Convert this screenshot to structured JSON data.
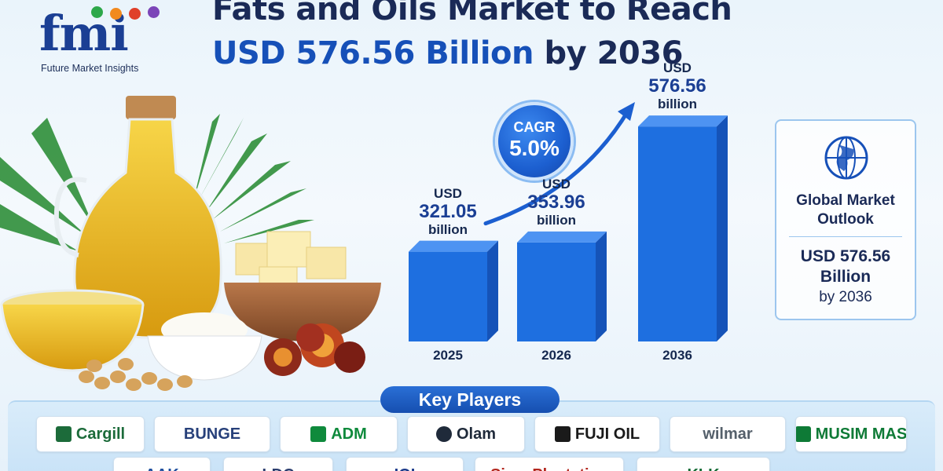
{
  "logo": {
    "letters": "fmi",
    "tagline": "Future Market Insights"
  },
  "headline": {
    "line1": "Fats and Oils Market to Reach",
    "line2_accent": "USD 576.56 Billion",
    "line2_rest": "by 2036"
  },
  "cagr": {
    "label": "CAGR",
    "value": "5.0%"
  },
  "chart_data": {
    "type": "bar",
    "categories": [
      "2025",
      "2026",
      "2036"
    ],
    "values": [
      321.05,
      353.96,
      576.56
    ],
    "value_labels": [
      {
        "currency": "USD",
        "number": "321.05",
        "unit": "billion"
      },
      {
        "currency": "USD",
        "number": "353.96",
        "unit": "billion"
      },
      {
        "currency": "USD",
        "number": "576.56",
        "unit": "billion"
      }
    ],
    "title": "",
    "xlabel": "",
    "ylabel": "",
    "ylim": [
      0,
      600
    ],
    "grid": false,
    "bar_color": "#1e6fe0",
    "trend_arrow": true
  },
  "outlook": {
    "title_line1": "Global Market",
    "title_line2": "Outlook",
    "value_line1": "USD 576.56",
    "value_line2": "Billion",
    "value_line3": "by 2036"
  },
  "players": {
    "title": "Key Players",
    "row1": [
      {
        "name": "Cargill",
        "color": "#1c6b3a",
        "icon": "leaf-icon"
      },
      {
        "name": "BUNGE",
        "color": "#27407a",
        "icon": ""
      },
      {
        "name": "ADM",
        "color": "#0f8a3c",
        "icon": "adm-mark-icon"
      },
      {
        "name": "Olam",
        "color": "#1f2a3a",
        "icon": "olam-flower-icon"
      },
      {
        "name": "FUJI OIL",
        "color": "#1a1a1a",
        "icon": "fuji-mark-icon"
      },
      {
        "name": "wilmar",
        "color": "#55606b",
        "icon": ""
      },
      {
        "name": "MUSIM MAS",
        "color": "#0e7a36",
        "icon": "musim-mas-mark-icon"
      }
    ],
    "row2": [
      {
        "name": "AAK",
        "color": "#1f4f9e"
      },
      {
        "name": "LDC",
        "color": "#2b3d6e"
      },
      {
        "name": "IOI",
        "color": "#1b3a8a"
      },
      {
        "name": "Sime Plantation",
        "color": "#b3261e"
      },
      {
        "name": "KLK",
        "color": "#136b34"
      }
    ]
  },
  "colors": {
    "brand_dark": "#1a2a57",
    "brand_blue": "#1650b8",
    "bar_blue": "#1e6fe0",
    "background": "#eaf4fb"
  }
}
